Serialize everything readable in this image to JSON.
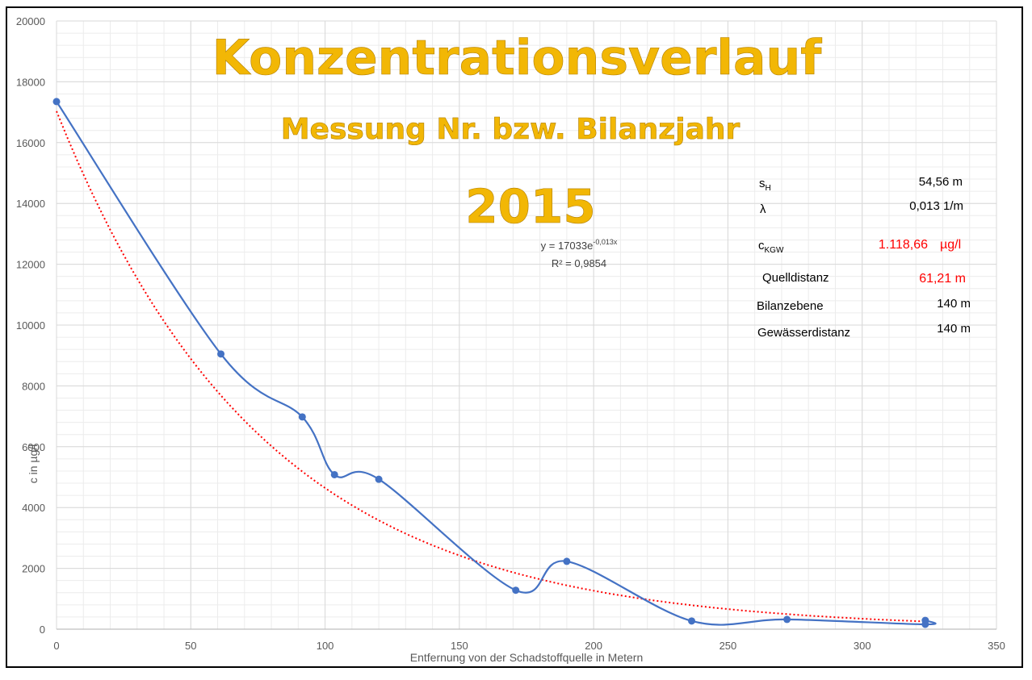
{
  "chart_data": {
    "type": "line",
    "title": "Konzentrationsverlauf",
    "subtitle": "Messung Nr. bzw. Bilanzjahr",
    "year": "2015",
    "xlabel": "Entfernung von der Schadstoffquelle in Metern",
    "ylabel": "c in µg/l",
    "xlim": [
      0,
      350
    ],
    "ylim": [
      0,
      20000
    ],
    "x_ticks": [
      "0",
      "50",
      "100",
      "150",
      "200",
      "250",
      "300",
      "350"
    ],
    "y_ticks": [
      "0",
      "2000",
      "4000",
      "6000",
      "8000",
      "10000",
      "12000",
      "14000",
      "16000",
      "18000",
      "20000"
    ],
    "grid": true,
    "series": [
      {
        "color": "#4472c4",
        "x": [
          0,
          61.2,
          91.5,
          103.5,
          120,
          171,
          190,
          236.5,
          272,
          323.5,
          323.5
        ],
        "y": [
          17350,
          9050,
          6980,
          5080,
          4930,
          1280,
          2230,
          270,
          320,
          160,
          290
        ]
      }
    ],
    "trendline": {
      "type": "exponential",
      "color": "#ff0000",
      "a": 17033,
      "b": -0.013,
      "equation": "y = 17033e-0,013x",
      "r2_label": "R² = 0,9854"
    }
  },
  "info": {
    "sh_label": "s",
    "sh_sub": "H",
    "sh_value": "54,56 m",
    "lambda_label": "λ",
    "lambda_value": "0,013 1/m",
    "ckgw_label": "c",
    "ckgw_sub": "KGW",
    "ckgw_value": "1.118,66",
    "ckgw_unit": "µg/l",
    "quelldistanz_label": "Quelldistanz",
    "quelldistanz_value": "61,21 m",
    "bilanzebene_label": "Bilanzebene",
    "bilanzebene_value": "140 m",
    "gewaesser_label": "Gewässerdistanz",
    "gewaesser_value": "140 m"
  },
  "equation": {
    "prefix": "y = 17033e",
    "exponent": "-0,013x",
    "r2": "R² = 0,9854"
  },
  "colors": {
    "title": "#f2b705",
    "series": "#4472c4",
    "trend": "#ff0000",
    "red_text": "#ff0000"
  }
}
